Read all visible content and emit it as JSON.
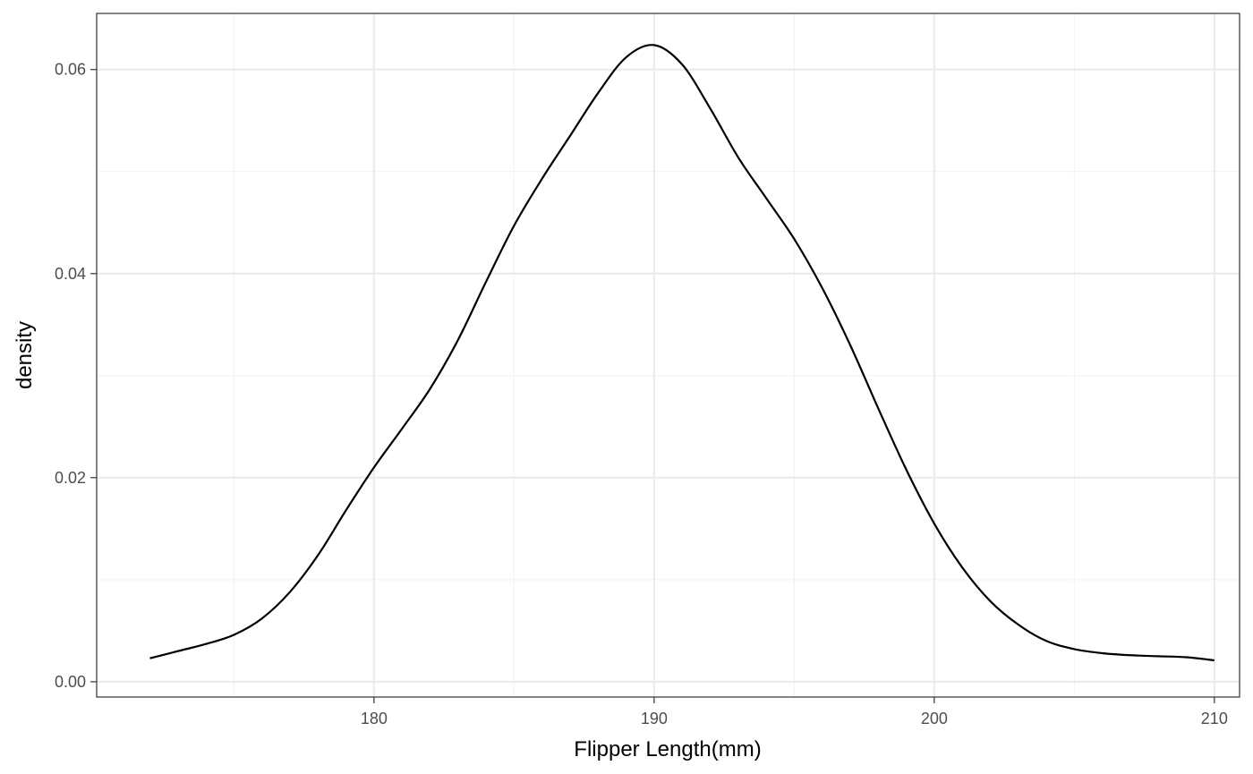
{
  "chart_data": {
    "type": "area",
    "title": "",
    "xlabel": "Flipper Length(mm)",
    "ylabel": "density",
    "xlim": [
      170.1,
      210.9
    ],
    "ylim": [
      -0.0015,
      0.0655
    ],
    "x_ticks": [
      180,
      190,
      200,
      210
    ],
    "x_tick_labels": [
      "180",
      "190",
      "200",
      "210"
    ],
    "y_ticks": [
      0.0,
      0.02,
      0.04,
      0.06
    ],
    "y_tick_labels": [
      "0.00",
      "0.02",
      "0.04",
      "0.06"
    ],
    "x_minor_ticks": [
      175,
      185,
      195,
      205
    ],
    "y_minor_ticks": [
      0.01,
      0.03,
      0.05
    ],
    "grid": true,
    "legend": "none",
    "colors": {
      "line": "#000000",
      "grid_major": "#ebebeb",
      "grid_minor": "#f2f2f2",
      "panel_border": "#333333",
      "tick_label": "#4d4d4d"
    },
    "series": [
      {
        "x": [
          172,
          173,
          174,
          175,
          176,
          177,
          178,
          179,
          180,
          181,
          182,
          183,
          184,
          185,
          186,
          187,
          188,
          189,
          190,
          191,
          192,
          193,
          194,
          195,
          196,
          197,
          198,
          199,
          200,
          201,
          202,
          203,
          204,
          205,
          206,
          207,
          208,
          209,
          210
        ],
        "y": [
          0.0023,
          0.003,
          0.0037,
          0.0046,
          0.0062,
          0.0088,
          0.0124,
          0.0168,
          0.021,
          0.0248,
          0.0287,
          0.0335,
          0.0392,
          0.0447,
          0.0493,
          0.0535,
          0.0577,
          0.0612,
          0.0624,
          0.0605,
          0.0562,
          0.0514,
          0.0474,
          0.0434,
          0.0386,
          0.033,
          0.0268,
          0.0208,
          0.0155,
          0.0112,
          0.0079,
          0.0056,
          0.004,
          0.0032,
          0.0028,
          0.0026,
          0.0025,
          0.0024,
          0.0021
        ]
      }
    ]
  }
}
